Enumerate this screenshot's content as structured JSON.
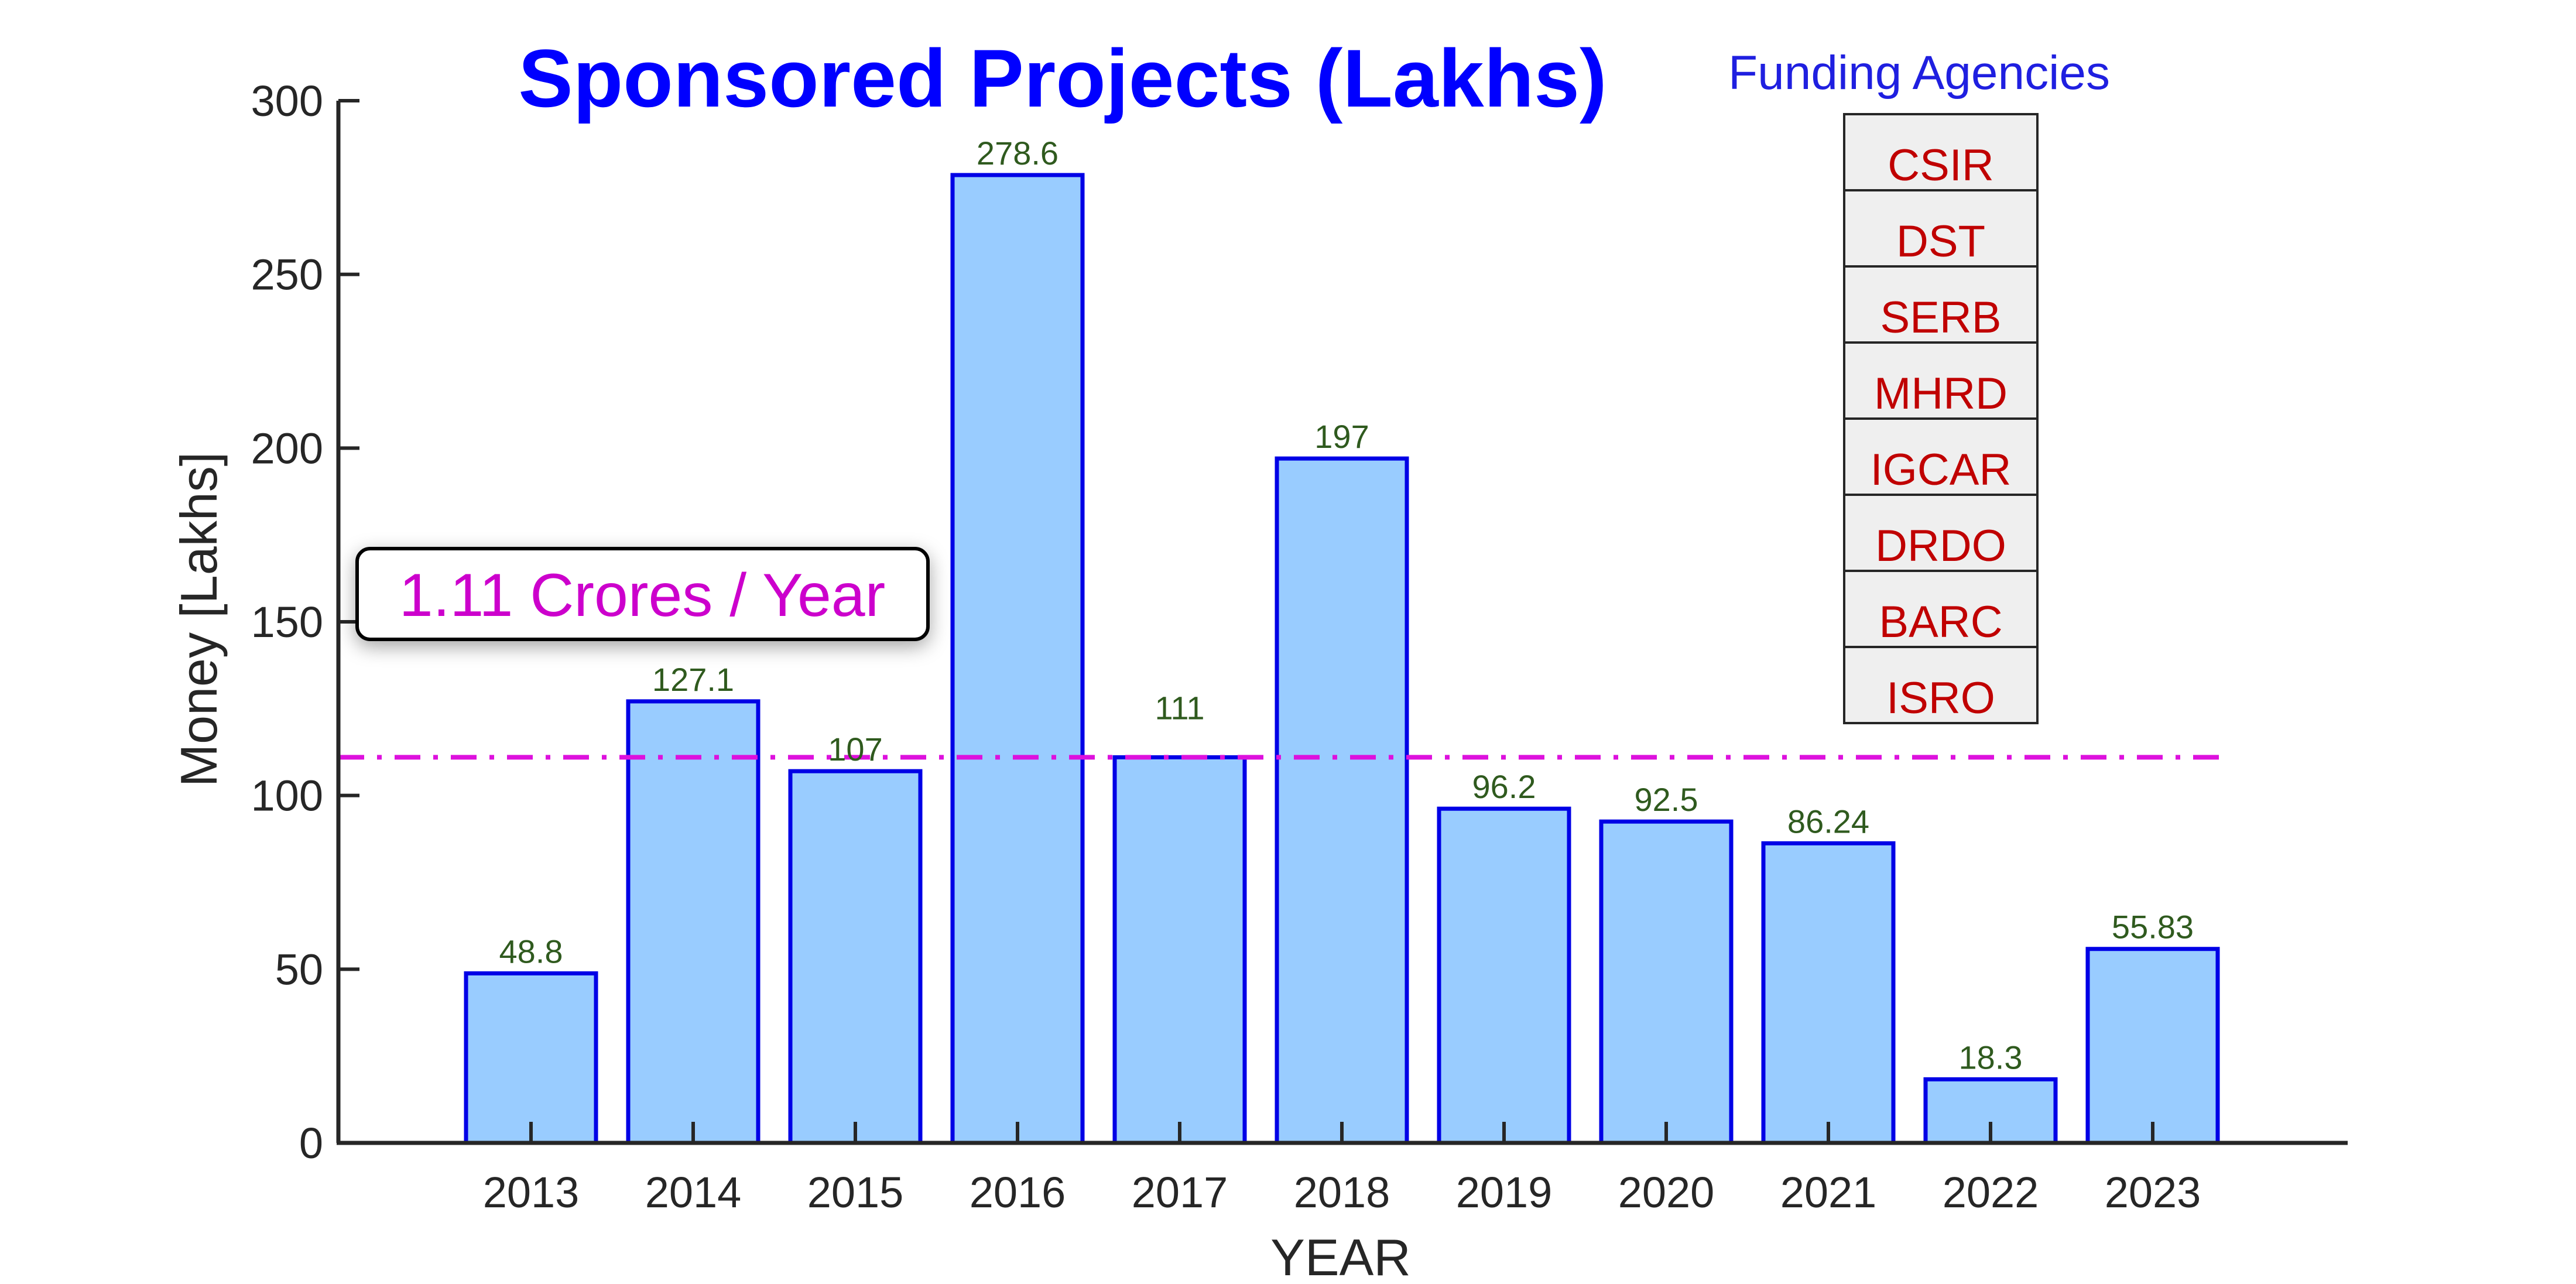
{
  "chart_data": {
    "type": "bar",
    "title": "Sponsored Projects (Lakhs)",
    "xlabel": "YEAR",
    "ylabel": "Money [Lakhs]",
    "categories": [
      "2013",
      "2014",
      "2015",
      "2016",
      "2017",
      "2018",
      "2019",
      "2020",
      "2021",
      "2022",
      "2023"
    ],
    "values": [
      48.8,
      127.1,
      107,
      278.6,
      111,
      197,
      96.2,
      92.5,
      86.24,
      18.3,
      55.83
    ],
    "data_labels": [
      "48.8",
      "127.1",
      "107",
      "278.6",
      "111",
      "197",
      "96.2",
      "92.5",
      "86.24",
      "18.3",
      "55.83"
    ],
    "ylim": [
      0,
      300
    ],
    "yticks": [
      0,
      50,
      100,
      150,
      200,
      250,
      300
    ],
    "ytick_labels": [
      "0",
      "50",
      "100",
      "150",
      "200",
      "250",
      "300"
    ],
    "grid": false,
    "average_line": {
      "value": 111,
      "style": "dash-dot",
      "label": "1.11 Crores / Year"
    },
    "agencies": {
      "title": "Funding Agencies",
      "items": [
        "CSIR",
        "DST",
        "SERB",
        "MHRD",
        "IGCAR",
        "DRDO",
        "BARC",
        "ISRO"
      ]
    },
    "colors": {
      "bar_fill": "#99ccff",
      "bar_edge": "#0000e6",
      "data_label": "#2f5a1e",
      "average_line": "#dd11dd",
      "title": "#0000ff",
      "agency_text": "#c00000",
      "agency_title": "#1f1fe0"
    }
  }
}
